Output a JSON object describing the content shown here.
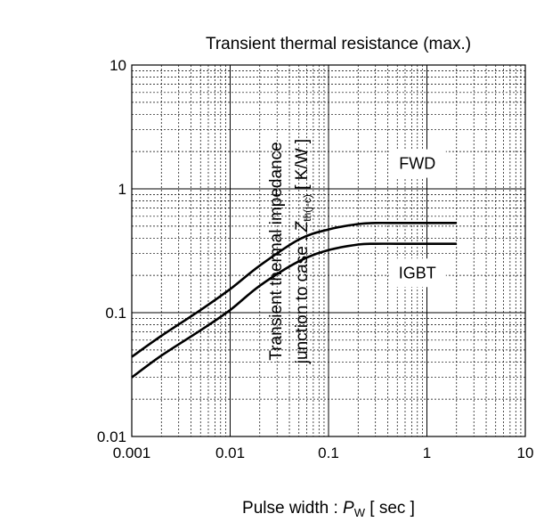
{
  "chart_data": {
    "type": "line",
    "title": "Transient thermal resistance (max.)",
    "xlabel": {
      "prefix": "Pulse width : ",
      "symbol": "P",
      "subscript": "W",
      "unit": " [ sec ]"
    },
    "ylabel": {
      "line1": "Transient thermal impedance",
      "line2_prefix": "junction to case : ",
      "symbol": "Z",
      "subscript": "th(j-c)",
      "unit": " [ K/W ]"
    },
    "x_scale": "log",
    "y_scale": "log",
    "xlim": [
      0.001,
      10
    ],
    "ylim": [
      0.01,
      10
    ],
    "x_ticks": [
      "0.001",
      "0.01",
      "0.1",
      "1",
      "10"
    ],
    "y_ticks": [
      "0.01",
      "0.1",
      "1",
      "10"
    ],
    "grid": true,
    "series": [
      {
        "name": "FWD",
        "x": [
          0.001,
          0.002,
          0.005,
          0.01,
          0.02,
          0.05,
          0.1,
          0.2,
          0.3,
          0.5,
          1,
          2
        ],
        "y": [
          0.044,
          0.065,
          0.105,
          0.155,
          0.24,
          0.39,
          0.47,
          0.52,
          0.53,
          0.53,
          0.53,
          0.53
        ]
      },
      {
        "name": "IGBT",
        "x": [
          0.001,
          0.002,
          0.005,
          0.01,
          0.02,
          0.05,
          0.1,
          0.2,
          0.3,
          0.5,
          1,
          2
        ],
        "y": [
          0.03,
          0.045,
          0.072,
          0.105,
          0.165,
          0.26,
          0.32,
          0.355,
          0.36,
          0.36,
          0.36,
          0.36
        ]
      }
    ]
  }
}
